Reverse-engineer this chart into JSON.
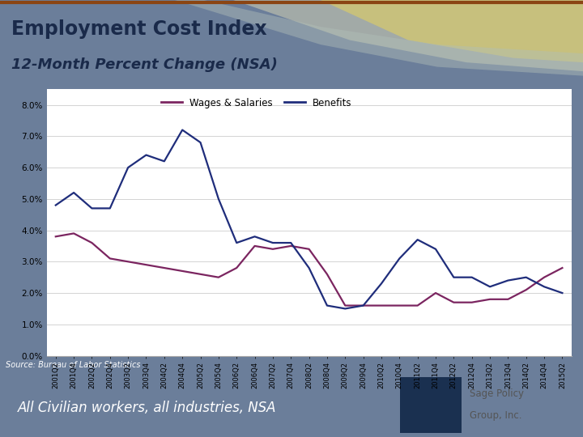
{
  "title_line1": "Employment Cost Index",
  "title_line2": "12-Month Percent Change (NSA)",
  "source": "Source: Bureau of Labor Statistics",
  "footer": "All Civilian workers, all industries, NSA",
  "wages_color": "#7B2560",
  "benefits_color": "#1F2D7B",
  "header_bg": "#E8E8E0",
  "footer_bg": "#6B7E9A",
  "source_bg": "#A0722A",
  "logo_box_bg": "#FFFFFF",
  "logo_icon_bg": "#1A3050",
  "ylim": [
    0.0,
    0.085
  ],
  "yticks": [
    0.0,
    0.01,
    0.02,
    0.03,
    0.04,
    0.05,
    0.06,
    0.07,
    0.08
  ],
  "ytick_labels": [
    "0.0%",
    "1.0%",
    "2.0%",
    "3.0%",
    "4.0%",
    "5.0%",
    "6.0%",
    "7.0%",
    "8.0%"
  ],
  "x_labels": [
    "2001Q2",
    "2001Q4",
    "2002Q2",
    "2002Q4",
    "2003Q2",
    "2003Q4",
    "2004Q2",
    "2004Q4",
    "2005Q2",
    "2005Q4",
    "2006Q2",
    "2006Q4",
    "2007Q2",
    "2007Q4",
    "2008Q2",
    "2008Q4",
    "2009Q2",
    "2009Q4",
    "2010Q2",
    "2010Q4",
    "2011Q2",
    "2011Q4",
    "2012Q2",
    "2012Q4",
    "2013Q2",
    "2013Q4",
    "2014Q2",
    "2014Q4",
    "2015Q2"
  ],
  "wages_data": [
    [
      0,
      0.038
    ],
    [
      1,
      0.039
    ],
    [
      2,
      0.036
    ],
    [
      3,
      0.031
    ],
    [
      4,
      0.03
    ],
    [
      5,
      0.029
    ],
    [
      6,
      0.028
    ],
    [
      7,
      0.027
    ],
    [
      8,
      0.026
    ],
    [
      9,
      0.025
    ],
    [
      10,
      0.028
    ],
    [
      11,
      0.035
    ],
    [
      12,
      0.034
    ],
    [
      13,
      0.035
    ],
    [
      14,
      0.034
    ],
    [
      15,
      0.026
    ],
    [
      16,
      0.016
    ],
    [
      17,
      0.016
    ],
    [
      18,
      0.016
    ],
    [
      19,
      0.016
    ],
    [
      20,
      0.016
    ],
    [
      21,
      0.02
    ],
    [
      22,
      0.017
    ],
    [
      23,
      0.017
    ],
    [
      24,
      0.018
    ],
    [
      25,
      0.018
    ],
    [
      26,
      0.021
    ],
    [
      27,
      0.025
    ],
    [
      28,
      0.028
    ]
  ],
  "benefits_data": [
    [
      0,
      0.048
    ],
    [
      1,
      0.052
    ],
    [
      2,
      0.047
    ],
    [
      3,
      0.047
    ],
    [
      4,
      0.06
    ],
    [
      5,
      0.064
    ],
    [
      6,
      0.062
    ],
    [
      7,
      0.072
    ],
    [
      8,
      0.068
    ],
    [
      9,
      0.05
    ],
    [
      10,
      0.036
    ],
    [
      11,
      0.038
    ],
    [
      12,
      0.036
    ],
    [
      13,
      0.036
    ],
    [
      14,
      0.028
    ],
    [
      15,
      0.016
    ],
    [
      16,
      0.015
    ],
    [
      17,
      0.016
    ],
    [
      18,
      0.023
    ],
    [
      19,
      0.031
    ],
    [
      20,
      0.037
    ],
    [
      21,
      0.034
    ],
    [
      22,
      0.025
    ],
    [
      23,
      0.025
    ],
    [
      24,
      0.022
    ],
    [
      25,
      0.024
    ],
    [
      26,
      0.025
    ],
    [
      27,
      0.022
    ],
    [
      28,
      0.02
    ]
  ]
}
